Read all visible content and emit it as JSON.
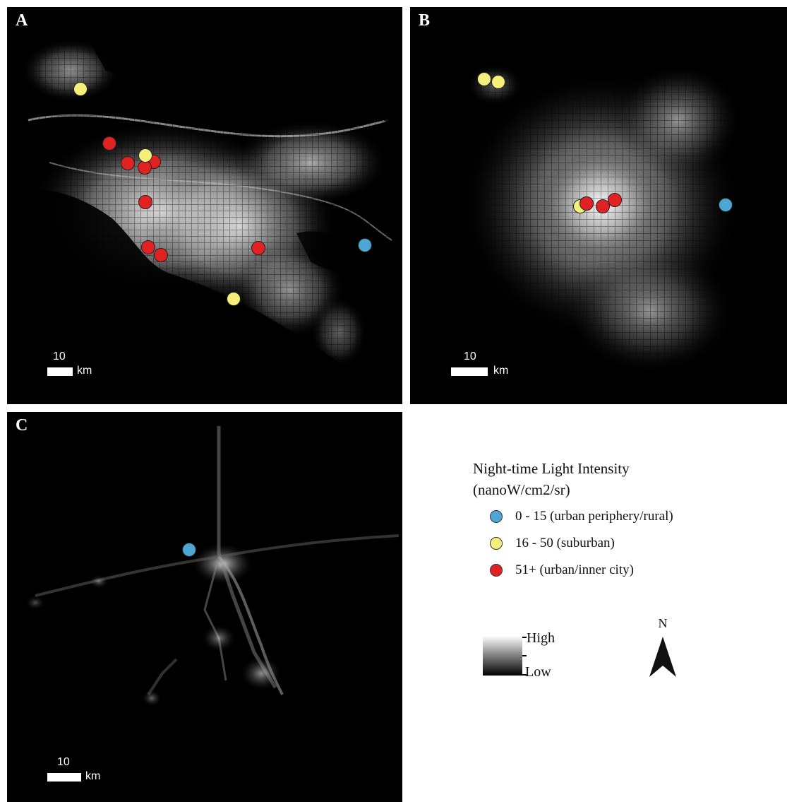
{
  "panels": [
    {
      "letter": "A",
      "scale_value": "10",
      "scale_unit": "km"
    },
    {
      "letter": "B",
      "scale_value": "10",
      "scale_unit": "km"
    },
    {
      "letter": "C",
      "scale_value": "10",
      "scale_unit": "km"
    }
  ],
  "legend": {
    "title_line1": "Night-time Light Intensity",
    "title_line2": "(nanoW/cm2/sr)",
    "items": [
      {
        "label": "0 - 15 (urban periphery/rural)",
        "color": "#4ea6d4"
      },
      {
        "label": "16 - 50 (suburban)",
        "color": "#f5f07a"
      },
      {
        "label": "51+ (urban/inner city)",
        "color": "#e22222"
      }
    ],
    "ramp_high": "High",
    "ramp_low": "Low"
  },
  "north_arrow": {
    "letter": "N",
    "icon": "north-arrow-icon"
  },
  "colors": {
    "rural": "#4ea6d4",
    "suburban": "#f5f07a",
    "urban": "#e22222",
    "background": "#000000"
  }
}
